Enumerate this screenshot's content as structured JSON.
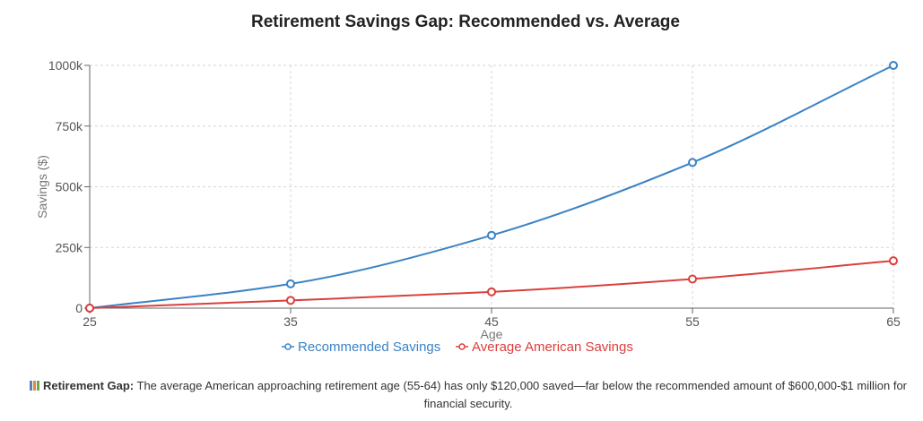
{
  "chart_data": {
    "type": "line",
    "title": "Retirement Savings Gap: Recommended vs. Average",
    "xlabel": "Age",
    "ylabel": "Savings ($)",
    "x": [
      25,
      35,
      45,
      55,
      65
    ],
    "xlim": [
      25,
      65
    ],
    "ylim": [
      0,
      1000000
    ],
    "y_ticks": [
      0,
      250000,
      500000,
      750000,
      1000000
    ],
    "y_tick_labels": [
      "0",
      "250k",
      "500k",
      "750k",
      "1000k"
    ],
    "x_tick_labels": [
      "25",
      "35",
      "45",
      "55",
      "65"
    ],
    "grid": true,
    "legend_position": "bottom",
    "series": [
      {
        "name": "Recommended Savings",
        "color": "#3b82c4",
        "values": [
          0,
          100000,
          300000,
          600000,
          1000000
        ]
      },
      {
        "name": "Average American Savings",
        "color": "#d9403d",
        "values": [
          0,
          32000,
          67000,
          120000,
          195000
        ]
      }
    ]
  },
  "note": {
    "icon": "bar-chart-icon",
    "label": "Retirement Gap:",
    "text": " The average American approaching retirement age (55-64) has only $120,000 saved—far below the recommended amount of $600,000-$1 million for financial security."
  }
}
